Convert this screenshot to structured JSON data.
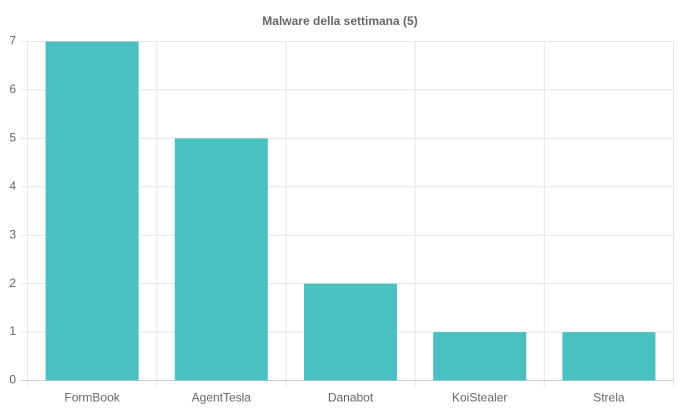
{
  "chart_data": {
    "type": "bar",
    "title": "Malware della settimana (5)",
    "categories": [
      "FormBook",
      "AgentTesla",
      "Danabot",
      "KoiStealer",
      "Strela"
    ],
    "values": [
      7,
      5,
      2,
      1,
      1
    ],
    "color": "#4bc0c0",
    "ylim": [
      0,
      7
    ],
    "yticks": [
      0,
      1,
      2,
      3,
      4,
      5,
      6,
      7
    ],
    "grid": true
  }
}
